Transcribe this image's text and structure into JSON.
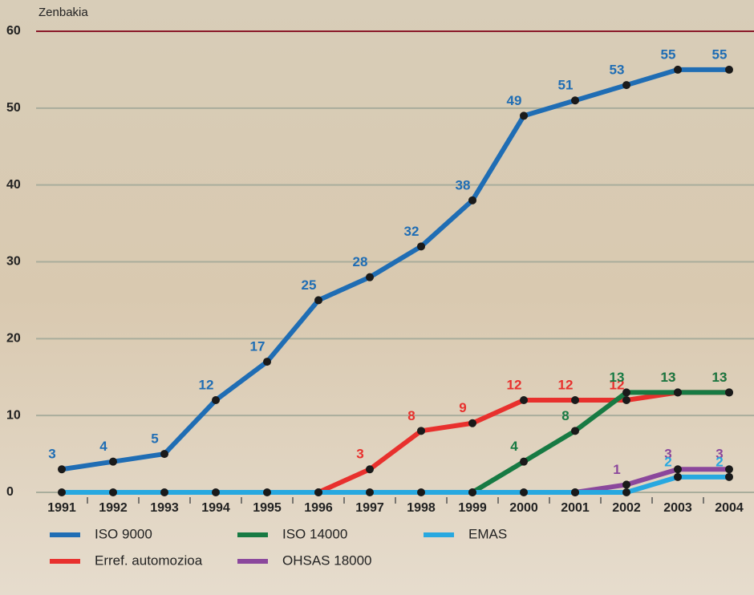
{
  "chart_data": {
    "type": "line",
    "y_label": "Zenbakia",
    "categories": [
      "1991",
      "1992",
      "1993",
      "1994",
      "1995",
      "1996",
      "1997",
      "1998",
      "1999",
      "2000",
      "2001",
      "2002",
      "2003",
      "2004"
    ],
    "series": [
      {
        "name": "ISO 9000",
        "color": "#1f6db4",
        "values": [
          3,
          4,
          5,
          12,
          17,
          25,
          28,
          32,
          38,
          49,
          51,
          53,
          55,
          55
        ]
      },
      {
        "name": "Erref. automozioa",
        "color": "#e8302d",
        "values": [
          null,
          null,
          null,
          null,
          null,
          0,
          3,
          8,
          9,
          12,
          12,
          12,
          13,
          13
        ]
      },
      {
        "name": "ISO 14000",
        "color": "#177a43",
        "values": [
          null,
          null,
          null,
          null,
          null,
          null,
          null,
          null,
          0,
          4,
          8,
          13,
          13,
          13
        ]
      },
      {
        "name": "OHSAS 18000",
        "color": "#8b479c",
        "values": [
          null,
          null,
          null,
          null,
          null,
          null,
          null,
          null,
          null,
          null,
          0,
          1,
          3,
          3
        ]
      },
      {
        "name": "EMAS",
        "color": "#27a8e0",
        "values": [
          0,
          0,
          0,
          0,
          0,
          0,
          0,
          0,
          0,
          0,
          0,
          0,
          2,
          2
        ]
      }
    ],
    "ylim": [
      0,
      60
    ],
    "yticks": [
      0,
      10,
      20,
      30,
      40,
      50,
      60
    ],
    "grid": true
  }
}
